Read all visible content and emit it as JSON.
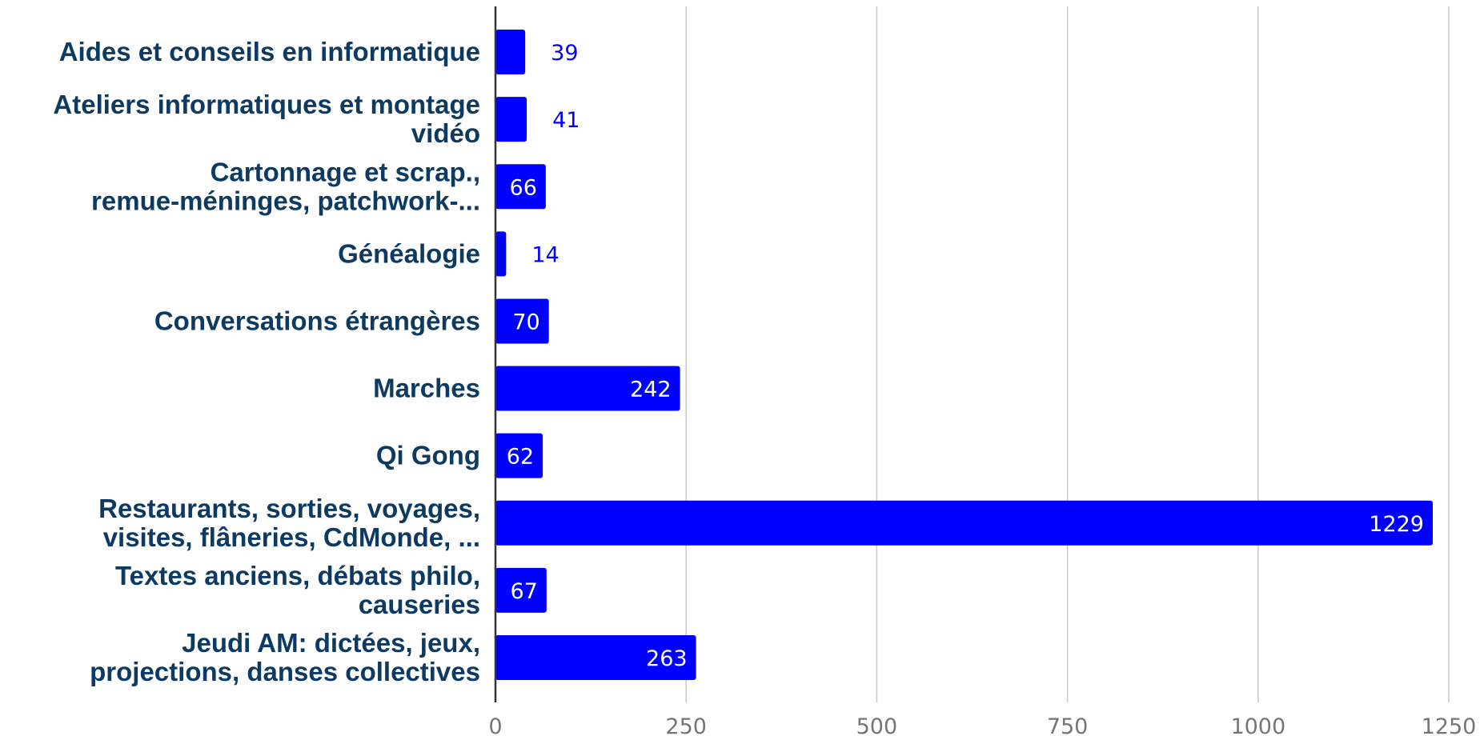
{
  "chart_data": {
    "type": "bar",
    "orientation": "horizontal",
    "categories": [
      [
        "Aides et conseils en informatique"
      ],
      [
        "Ateliers informatiques et montage",
        "vidéo"
      ],
      [
        "Cartonnage et scrap.,",
        "remue-méninges, patchwork-..."
      ],
      [
        "Généalogie"
      ],
      [
        "Conversations étrangères"
      ],
      [
        "Marches"
      ],
      [
        "Qi Gong"
      ],
      [
        "Restaurants, sorties, voyages,",
        "visites, flâneries, CdMonde, ..."
      ],
      [
        "Textes anciens, débats philo,",
        "causeries"
      ],
      [
        "Jeudi AM: dictées, jeux,",
        "projections, danses collectives"
      ]
    ],
    "values": [
      39,
      41,
      66,
      14,
      70,
      242,
      62,
      1229,
      67,
      263
    ],
    "data_labels": [
      "39",
      "41",
      "66",
      "14",
      "70",
      "242",
      "62",
      "1229",
      "67",
      "263"
    ],
    "xlim": [
      0,
      1250
    ],
    "x_ticks": [
      "0",
      "250",
      "500",
      "750",
      "1000",
      "1250"
    ],
    "x_tick_values": [
      0,
      250,
      500,
      750,
      1000,
      1250
    ],
    "grid": true,
    "legend": "none",
    "title": "",
    "xlabel": "",
    "ylabel": "",
    "colors": {
      "bar": "#0000ff",
      "label_inside": "#ffffff",
      "label_outside": "#0000ff",
      "category_text": "#0d3a63",
      "tick_text": "#757575",
      "grid": "#cccccc",
      "axis": "#333333"
    }
  }
}
